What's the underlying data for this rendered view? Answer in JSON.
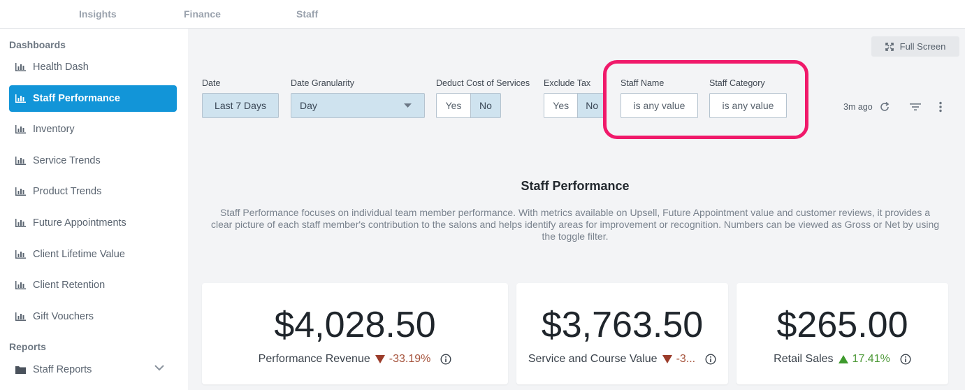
{
  "topnav": {
    "tabs": [
      {
        "label": "Insights"
      },
      {
        "label": "Finance"
      },
      {
        "label": "Staff"
      }
    ]
  },
  "sidebar": {
    "dashboards_title": "Dashboards",
    "items": [
      {
        "label": "Health Dash"
      },
      {
        "label": "Staff Performance"
      },
      {
        "label": "Inventory"
      },
      {
        "label": "Service Trends"
      },
      {
        "label": "Product Trends"
      },
      {
        "label": "Future Appointments"
      },
      {
        "label": "Client Lifetime Value"
      },
      {
        "label": "Client Retention"
      },
      {
        "label": "Gift Vouchers"
      }
    ],
    "reports_title": "Reports",
    "reports_items": [
      {
        "label": "Staff Reports"
      }
    ]
  },
  "toolbar": {
    "fullscreen_label": "Full Screen",
    "last_updated": "3m ago"
  },
  "filters": {
    "date": {
      "label": "Date",
      "value": "Last 7 Days"
    },
    "granularity": {
      "label": "Date Granularity",
      "value": "Day"
    },
    "deduct_cost": {
      "label": "Deduct Cost of Services",
      "yes": "Yes",
      "no": "No",
      "selected": "No"
    },
    "exclude_tax": {
      "label": "Exclude Tax",
      "yes": "Yes",
      "no": "No",
      "selected": "No"
    },
    "staff_name": {
      "label": "Staff Name",
      "value": "is any value"
    },
    "staff_category": {
      "label": "Staff Category",
      "value": "is any value"
    }
  },
  "content": {
    "title": "Staff Performance",
    "description": "Staff Performance focuses on individual team member performance. With metrics available on Upsell, Future Appointment value and customer reviews, it provides a clear picture of each staff member's contribution to the salons and helps identify areas for improvement or recognition. Numbers can be viewed as Gross or Net by using the toggle filter."
  },
  "cards": [
    {
      "value": "$4,028.50",
      "label": "Performance Revenue",
      "change": "-33.19%",
      "direction": "down"
    },
    {
      "value": "$3,763.50",
      "label": "Service and Course Value",
      "change": "-3...",
      "direction": "down"
    },
    {
      "value": "$265.00",
      "label": "Retail Sales",
      "change": "17.41%",
      "direction": "up"
    }
  ],
  "colors": {
    "accent": "#1295d8",
    "highlight": "#f0196a",
    "down": "#9b3c2a",
    "up": "#3e9a2d"
  }
}
